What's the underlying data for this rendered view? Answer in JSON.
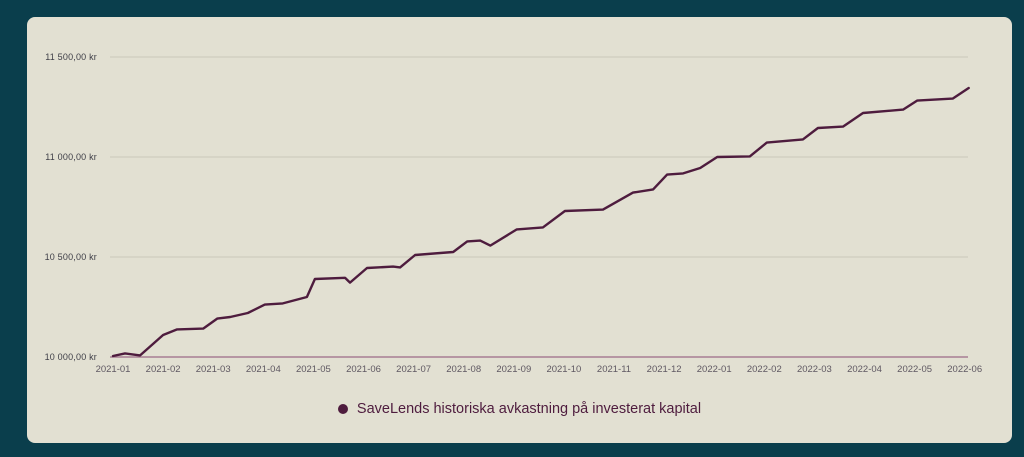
{
  "chart_data": {
    "type": "line",
    "legend_label": "SaveLends historiska avkastning på investerat kapital",
    "legend_position": "bottom",
    "grid": "horizontal",
    "ylim": [
      10000,
      11500
    ],
    "x_tick_labels": [
      "2021-01",
      "2021-02",
      "2021-03",
      "2021-04",
      "2021-05",
      "2021-06",
      "2021-07",
      "2021-08",
      "2021-09",
      "2021-10",
      "2021-11",
      "2021-12",
      "2022-01",
      "2022-02",
      "2022-03",
      "2022-04",
      "2022-05",
      "2022-06"
    ],
    "y_ticks": [
      {
        "value": 11500,
        "label": "11 500,00 kr"
      },
      {
        "value": 11000,
        "label": "11 000,00 kr"
      },
      {
        "value": 10500,
        "label": "10 500,00 kr"
      },
      {
        "value": 10000,
        "label": "10 000,00 kr"
      }
    ],
    "series": [
      {
        "name": "SaveLends historiska avkastning på investerat kapital",
        "color": "#4e1c3e",
        "points": [
          [
            0.0,
            10005
          ],
          [
            0.24,
            10018
          ],
          [
            0.54,
            10008
          ],
          [
            1.0,
            10110
          ],
          [
            1.28,
            10138
          ],
          [
            1.8,
            10142
          ],
          [
            2.08,
            10192
          ],
          [
            2.34,
            10200
          ],
          [
            2.69,
            10220
          ],
          [
            3.03,
            10262
          ],
          [
            3.39,
            10268
          ],
          [
            3.87,
            10300
          ],
          [
            4.03,
            10390
          ],
          [
            4.63,
            10396
          ],
          [
            4.73,
            10372
          ],
          [
            5.07,
            10445
          ],
          [
            5.59,
            10452
          ],
          [
            5.73,
            10448
          ],
          [
            6.03,
            10510
          ],
          [
            6.79,
            10525
          ],
          [
            7.07,
            10578
          ],
          [
            7.33,
            10582
          ],
          [
            7.53,
            10557
          ],
          [
            8.06,
            10638
          ],
          [
            8.58,
            10648
          ],
          [
            9.02,
            10730
          ],
          [
            9.78,
            10737
          ],
          [
            10.38,
            10822
          ],
          [
            10.78,
            10838
          ],
          [
            11.06,
            10912
          ],
          [
            11.38,
            10918
          ],
          [
            11.72,
            10945
          ],
          [
            12.06,
            11000
          ],
          [
            12.71,
            11003
          ],
          [
            13.05,
            11072
          ],
          [
            13.77,
            11088
          ],
          [
            14.07,
            11145
          ],
          [
            14.57,
            11152
          ],
          [
            14.97,
            11220
          ],
          [
            15.77,
            11237
          ],
          [
            16.05,
            11282
          ],
          [
            16.76,
            11292
          ],
          [
            17.08,
            11345
          ]
        ]
      }
    ]
  },
  "colors": {
    "page_background": "#0a3e4c",
    "card_background": "#e2e0d2",
    "series_line": "#4e1c3e",
    "gridline": "#c9c8bb",
    "axis_line": "#a77e93",
    "y_label_text": "#3e3e47",
    "x_label_text": "#5f5862"
  }
}
